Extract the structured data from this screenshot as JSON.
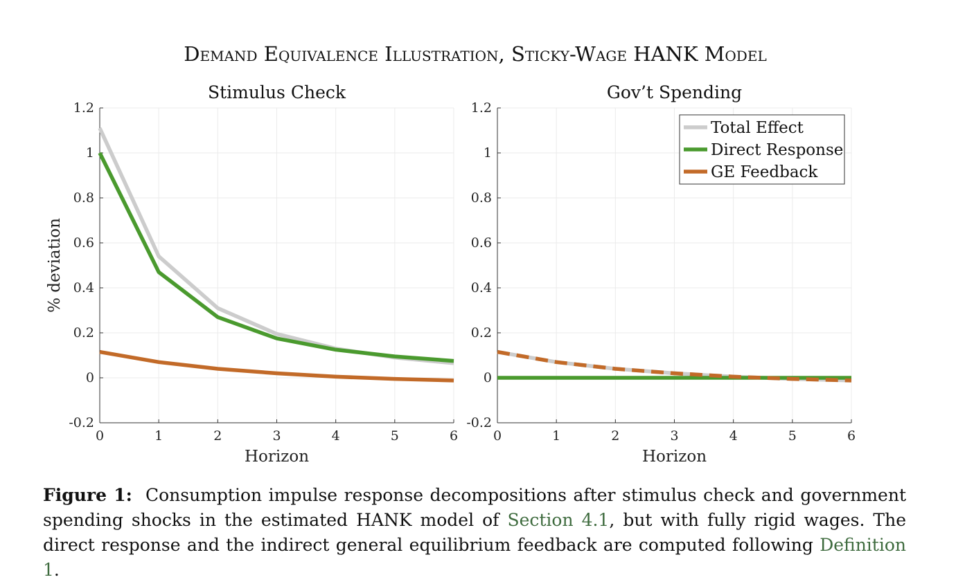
{
  "figure_title": "Demand Equivalence Illustration, Sticky-Wage HANK Model",
  "caption": {
    "label": "Figure 1:",
    "text1": "Consumption impulse response decompositions after stimulus check and government spending shocks in the estimated HANK model of ",
    "ref1": "Section 4.1",
    "text2": ", but with fully rigid wages. The direct response and the indirect general equilibrium feedback are computed following ",
    "ref2": "Definition 1",
    "text3": "."
  },
  "colors": {
    "total": "#cccccc",
    "direct": "#4a9a2e",
    "ge": "#c26a28",
    "xref": "#3e6b3e"
  },
  "chart_data": [
    {
      "type": "line",
      "title": "Stimulus Check",
      "xlabel": "Horizon",
      "ylabel": "% deviation",
      "xlim": [
        0,
        6
      ],
      "ylim": [
        -0.2,
        1.2
      ],
      "xticks": [
        "0",
        "1",
        "2",
        "3",
        "4",
        "5",
        "6"
      ],
      "yticks": [
        "-0.2",
        "0",
        "0.2",
        "0.4",
        "0.6",
        "0.8",
        "1",
        "1.2"
      ],
      "grid": true,
      "x": [
        0,
        1,
        2,
        3,
        4,
        5,
        6
      ],
      "series": [
        {
          "name": "Total Effect",
          "color": "#cccccc",
          "style": "solid",
          "values": [
            1.11,
            0.54,
            0.31,
            0.195,
            0.13,
            0.09,
            0.065
          ]
        },
        {
          "name": "Direct Response",
          "color": "#4a9a2e",
          "style": "solid",
          "values": [
            1.0,
            0.47,
            0.27,
            0.175,
            0.125,
            0.095,
            0.075
          ]
        },
        {
          "name": "GE Feedback",
          "color": "#c26a28",
          "style": "solid",
          "values": [
            0.115,
            0.07,
            0.04,
            0.02,
            0.005,
            -0.005,
            -0.012
          ]
        }
      ]
    },
    {
      "type": "line",
      "title": "Gov’t Spending",
      "xlabel": "Horizon",
      "ylabel": "",
      "xlim": [
        0,
        6
      ],
      "ylim": [
        -0.2,
        1.2
      ],
      "xticks": [
        "0",
        "1",
        "2",
        "3",
        "4",
        "5",
        "6"
      ],
      "yticks": [
        "-0.2",
        "0",
        "0.2",
        "0.4",
        "0.6",
        "0.8",
        "1",
        "1.2"
      ],
      "grid": true,
      "legend": "top-right",
      "x": [
        0,
        1,
        2,
        3,
        4,
        5,
        6
      ],
      "series": [
        {
          "name": "Total Effect",
          "color": "#cccccc",
          "style": "solid",
          "values": [
            0.115,
            0.07,
            0.04,
            0.02,
            0.005,
            -0.005,
            -0.012
          ]
        },
        {
          "name": "Direct Response",
          "color": "#4a9a2e",
          "style": "solid",
          "values": [
            0,
            0,
            0,
            0,
            0,
            0,
            0
          ]
        },
        {
          "name": "GE Feedback",
          "color": "#c26a28",
          "style": "dashed",
          "values": [
            0.115,
            0.07,
            0.04,
            0.02,
            0.005,
            -0.005,
            -0.012
          ]
        }
      ]
    }
  ]
}
